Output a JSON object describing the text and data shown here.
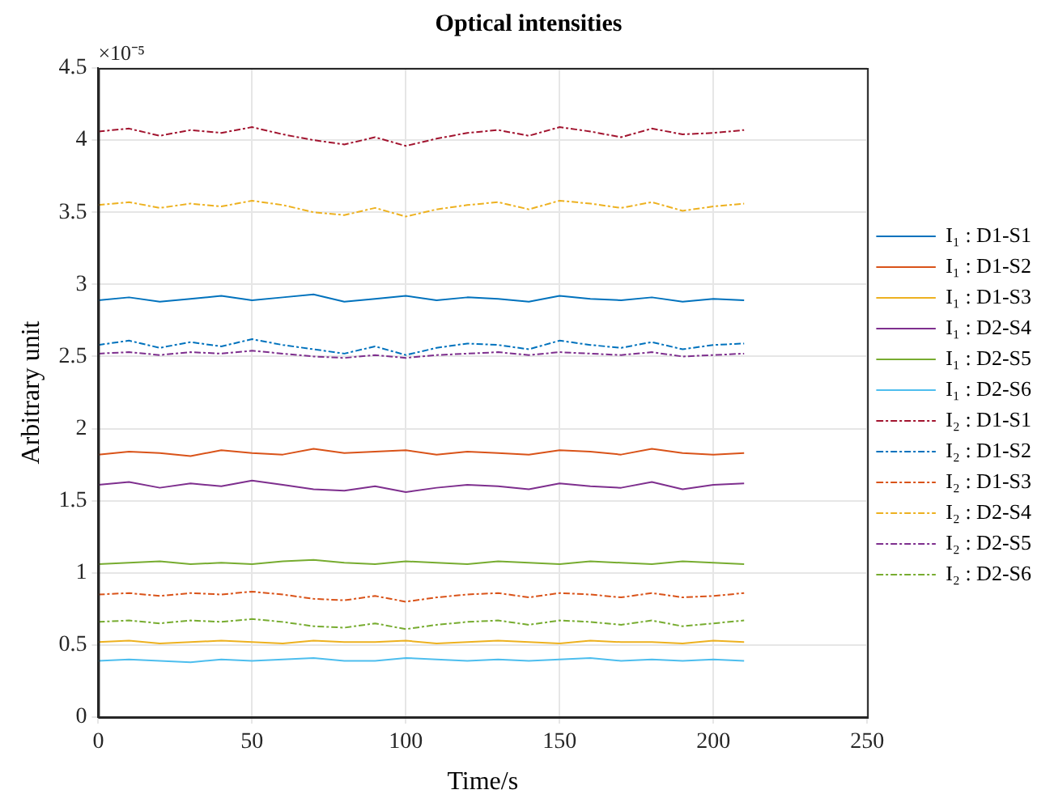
{
  "chart_data": {
    "type": "line",
    "title": "Optical intensities",
    "xlabel": "Time/s",
    "ylabel": "Arbitrary unit",
    "annotations": [
      "×10⁻⁵"
    ],
    "x": [
      0,
      10,
      20,
      30,
      40,
      50,
      60,
      70,
      80,
      90,
      100,
      110,
      120,
      130,
      140,
      150,
      160,
      170,
      180,
      190,
      200,
      210
    ],
    "xlim": [
      0,
      250
    ],
    "xticks": [
      0,
      50,
      100,
      150,
      200,
      250
    ],
    "ylim": [
      0,
      4.5
    ],
    "yticks": [
      0,
      0.5,
      1,
      1.5,
      2,
      2.5,
      3,
      3.5,
      4,
      4.5
    ],
    "grid": true,
    "legend": "right",
    "marker": "none",
    "series": [
      {
        "name": "I₁ : D1-S1",
        "color": "#0072bd",
        "line_style": "solid",
        "values": [
          2.89,
          2.91,
          2.88,
          2.9,
          2.92,
          2.89,
          2.91,
          2.93,
          2.88,
          2.9,
          2.92,
          2.89,
          2.91,
          2.9,
          2.88,
          2.92,
          2.9,
          2.89,
          2.91,
          2.88,
          2.9,
          2.89
        ]
      },
      {
        "name": "I₁ : D1-S2",
        "color": "#d95319",
        "line_style": "solid",
        "values": [
          1.82,
          1.84,
          1.83,
          1.81,
          1.85,
          1.83,
          1.82,
          1.86,
          1.83,
          1.84,
          1.85,
          1.82,
          1.84,
          1.83,
          1.82,
          1.85,
          1.84,
          1.82,
          1.86,
          1.83,
          1.82,
          1.83
        ]
      },
      {
        "name": "I₁ : D1-S3",
        "color": "#edb120",
        "line_style": "solid",
        "values": [
          0.52,
          0.53,
          0.51,
          0.52,
          0.53,
          0.52,
          0.51,
          0.53,
          0.52,
          0.52,
          0.53,
          0.51,
          0.52,
          0.53,
          0.52,
          0.51,
          0.53,
          0.52,
          0.52,
          0.51,
          0.53,
          0.52
        ]
      },
      {
        "name": "I₁ : D2-S4",
        "color": "#7e2f8e",
        "line_style": "solid",
        "values": [
          1.61,
          1.63,
          1.59,
          1.62,
          1.6,
          1.64,
          1.61,
          1.58,
          1.57,
          1.6,
          1.56,
          1.59,
          1.61,
          1.6,
          1.58,
          1.62,
          1.6,
          1.59,
          1.63,
          1.58,
          1.61,
          1.62
        ]
      },
      {
        "name": "I₁ : D2-S5",
        "color": "#77ac30",
        "line_style": "solid",
        "values": [
          1.06,
          1.07,
          1.08,
          1.06,
          1.07,
          1.06,
          1.08,
          1.09,
          1.07,
          1.06,
          1.08,
          1.07,
          1.06,
          1.08,
          1.07,
          1.06,
          1.08,
          1.07,
          1.06,
          1.08,
          1.07,
          1.06
        ]
      },
      {
        "name": "I₁ : D2-S6",
        "color": "#4dbeee",
        "line_style": "solid",
        "values": [
          0.39,
          0.4,
          0.39,
          0.38,
          0.4,
          0.39,
          0.4,
          0.41,
          0.39,
          0.39,
          0.41,
          0.4,
          0.39,
          0.4,
          0.39,
          0.4,
          0.41,
          0.39,
          0.4,
          0.39,
          0.4,
          0.39
        ]
      },
      {
        "name": "I₂ : D1-S1",
        "color": "#a2142f",
        "line_style": "dashed",
        "values": [
          4.06,
          4.08,
          4.03,
          4.07,
          4.05,
          4.09,
          4.04,
          4.0,
          3.97,
          4.02,
          3.96,
          4.01,
          4.05,
          4.07,
          4.03,
          4.09,
          4.06,
          4.02,
          4.08,
          4.04,
          4.05,
          4.07
        ]
      },
      {
        "name": "I₂ : D1-S2",
        "color": "#0072bd",
        "line_style": "dashed",
        "values": [
          2.58,
          2.61,
          2.56,
          2.6,
          2.57,
          2.62,
          2.58,
          2.55,
          2.52,
          2.57,
          2.51,
          2.56,
          2.59,
          2.58,
          2.55,
          2.61,
          2.58,
          2.56,
          2.6,
          2.55,
          2.58,
          2.59
        ]
      },
      {
        "name": "I₂ : D1-S3",
        "color": "#d95319",
        "line_style": "dashed",
        "values": [
          0.85,
          0.86,
          0.84,
          0.86,
          0.85,
          0.87,
          0.85,
          0.82,
          0.81,
          0.84,
          0.8,
          0.83,
          0.85,
          0.86,
          0.83,
          0.86,
          0.85,
          0.83,
          0.86,
          0.83,
          0.84,
          0.86
        ]
      },
      {
        "name": "I₂ : D2-S4",
        "color": "#edb120",
        "line_style": "dashed",
        "values": [
          3.55,
          3.57,
          3.53,
          3.56,
          3.54,
          3.58,
          3.55,
          3.5,
          3.48,
          3.53,
          3.47,
          3.52,
          3.55,
          3.57,
          3.52,
          3.58,
          3.56,
          3.53,
          3.57,
          3.51,
          3.54,
          3.56
        ]
      },
      {
        "name": "I₂ : D2-S5",
        "color": "#7e2f8e",
        "line_style": "dashed",
        "values": [
          2.52,
          2.53,
          2.51,
          2.53,
          2.52,
          2.54,
          2.52,
          2.5,
          2.49,
          2.51,
          2.49,
          2.51,
          2.52,
          2.53,
          2.51,
          2.53,
          2.52,
          2.51,
          2.53,
          2.5,
          2.51,
          2.52
        ]
      },
      {
        "name": "I₂ : D2-S6",
        "color": "#77ac30",
        "line_style": "dashed",
        "values": [
          0.66,
          0.67,
          0.65,
          0.67,
          0.66,
          0.68,
          0.66,
          0.63,
          0.62,
          0.65,
          0.61,
          0.64,
          0.66,
          0.67,
          0.64,
          0.67,
          0.66,
          0.64,
          0.67,
          0.63,
          0.65,
          0.67
        ]
      }
    ]
  }
}
